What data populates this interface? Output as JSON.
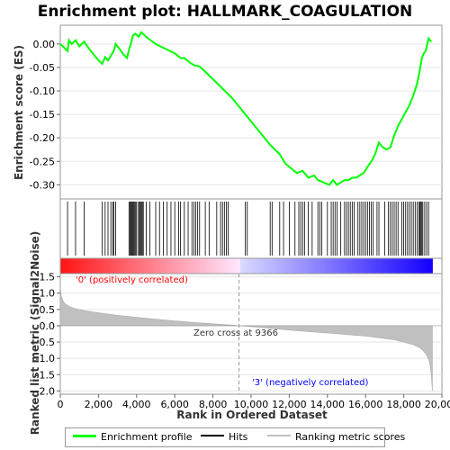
{
  "chart_data": [
    {
      "type": "line",
      "title": "Enrichment plot: HALLMARK_COAGULATION",
      "xlabel": "",
      "ylabel": "Enrichment score (ES)",
      "xlim": [
        0,
        20000
      ],
      "ylim": [
        -0.33,
        0.04
      ],
      "y_ticks": [
        0.0,
        -0.05,
        -0.1,
        -0.15,
        -0.2,
        -0.25,
        -0.3
      ],
      "y_tick_labels": [
        "0.00",
        "-0.05",
        "-0.10",
        "-0.15",
        "-0.20",
        "-0.25",
        "-0.30"
      ],
      "grid": true,
      "series": [
        {
          "name": "Enrichment profile",
          "color": "#00ff00",
          "x": [
            0,
            380,
            450,
            600,
            800,
            1000,
            1250,
            1500,
            2000,
            2200,
            2350,
            2500,
            2650,
            2800,
            2900,
            3100,
            3300,
            3500,
            3600,
            3700,
            3800,
            3950,
            4100,
            4250,
            4500,
            5000,
            5500,
            6000,
            6300,
            6500,
            6800,
            7000,
            7300,
            7500,
            8000,
            8500,
            9000,
            9500,
            10000,
            10500,
            11000,
            11500,
            11800,
            12100,
            12400,
            12700,
            13000,
            13300,
            13500,
            13800,
            14100,
            14300,
            14500,
            14700,
            14900,
            15100,
            15300,
            15500,
            15700,
            15900,
            16100,
            16300,
            16500,
            16700,
            16900,
            17100,
            17300,
            17500,
            17700,
            17900,
            18100,
            18300,
            18500,
            18700,
            18850,
            18950,
            19050,
            19150,
            19300,
            19450
          ],
          "y": [
            0.0,
            -0.015,
            0.008,
            0.0,
            0.008,
            -0.005,
            0.005,
            -0.01,
            -0.035,
            -0.042,
            -0.028,
            -0.035,
            -0.025,
            -0.015,
            0.0,
            -0.01,
            -0.022,
            -0.03,
            -0.012,
            0.0,
            0.018,
            0.022,
            0.015,
            0.025,
            0.015,
            0.0,
            -0.01,
            -0.02,
            -0.03,
            -0.03,
            -0.04,
            -0.045,
            -0.048,
            -0.055,
            -0.075,
            -0.095,
            -0.115,
            -0.14,
            -0.165,
            -0.19,
            -0.215,
            -0.235,
            -0.255,
            -0.265,
            -0.275,
            -0.27,
            -0.285,
            -0.28,
            -0.29,
            -0.295,
            -0.3,
            -0.29,
            -0.3,
            -0.295,
            -0.29,
            -0.29,
            -0.285,
            -0.285,
            -0.28,
            -0.275,
            -0.262,
            -0.25,
            -0.235,
            -0.21,
            -0.22,
            -0.225,
            -0.22,
            -0.195,
            -0.175,
            -0.16,
            -0.145,
            -0.13,
            -0.11,
            -0.085,
            -0.055,
            -0.03,
            -0.02,
            -0.015,
            0.012,
            0.005
          ]
        }
      ]
    },
    {
      "type": "scatter",
      "title": "",
      "xlabel": "",
      "ylabel": "",
      "series": [
        {
          "name": "Hits",
          "color": "#000000",
          "x": [
            380,
            800,
            1250,
            2200,
            2350,
            2500,
            2650,
            2750,
            2800,
            2900,
            3600,
            3650,
            3700,
            3750,
            3800,
            3850,
            3900,
            3950,
            4000,
            4100,
            4150,
            4200,
            4250,
            4300,
            4350,
            4500,
            4700,
            5000,
            5200,
            5400,
            5600,
            5800,
            6000,
            6200,
            6300,
            6500,
            6700,
            6900,
            7000,
            7100,
            7200,
            7300,
            7600,
            7800,
            8200,
            8400,
            8500,
            8600,
            8700,
            8800,
            9700,
            9800,
            11000,
            11100,
            11500,
            11700,
            12000,
            12300,
            12500,
            12600,
            12700,
            12800,
            13000,
            13200,
            13500,
            13600,
            13700,
            14000,
            14200,
            14300,
            14400,
            14500,
            14700,
            14900,
            15000,
            15100,
            15200,
            15300,
            15400,
            15600,
            15700,
            15800,
            15900,
            16000,
            16100,
            16200,
            16300,
            16400,
            16600,
            16700,
            17000,
            17200,
            17300,
            17400,
            17500,
            17600,
            17700,
            17900,
            18000,
            18100,
            18200,
            18300,
            18400,
            18500,
            18600,
            18700,
            18800,
            18850,
            18900,
            18950,
            19000,
            19100,
            19200,
            19300
          ]
        }
      ]
    },
    {
      "type": "area",
      "title": "",
      "xlabel": "Rank in Ordered Dataset",
      "ylabel": "Ranked list metric (Signal2Noise)",
      "xlim": [
        0,
        20000
      ],
      "ylim": [
        -2.1,
        1.6
      ],
      "x_ticks": [
        0,
        2000,
        4000,
        6000,
        8000,
        10000,
        12000,
        14000,
        16000,
        18000,
        20000
      ],
      "x_tick_labels": [
        "0",
        "2,000",
        "4,000",
        "6,000",
        "8,000",
        "10,000",
        "12,000",
        "14,000",
        "16,000",
        "18,000",
        "20,000"
      ],
      "y_ticks": [
        1.5,
        1.0,
        0.5,
        0.0,
        -0.5,
        -1.0,
        -1.5,
        -2.0
      ],
      "y_tick_labels": [
        "1.5",
        "1.0",
        "0.5",
        "0.0",
        "-0.5",
        "-1.0",
        "-1.5",
        "-2.0"
      ],
      "grid": true,
      "series": [
        {
          "name": "Ranking metric scores",
          "color": "#c0c0c0",
          "x": [
            0,
            50,
            150,
            300,
            500,
            800,
            1200,
            2000,
            3000,
            4000,
            5000,
            6000,
            7000,
            8000,
            9000,
            9366,
            10000,
            11000,
            12000,
            13000,
            14000,
            15000,
            16000,
            17000,
            17500,
            18000,
            18500,
            18800,
            19000,
            19200,
            19350,
            19450,
            19500
          ],
          "y": [
            1.2,
            0.9,
            0.75,
            0.65,
            0.58,
            0.52,
            0.47,
            0.4,
            0.32,
            0.26,
            0.2,
            0.15,
            0.1,
            0.06,
            0.02,
            0.0,
            -0.03,
            -0.08,
            -0.13,
            -0.18,
            -0.22,
            -0.27,
            -0.32,
            -0.39,
            -0.43,
            -0.5,
            -0.58,
            -0.66,
            -0.75,
            -0.9,
            -1.1,
            -1.5,
            -2.0
          ]
        }
      ],
      "annotations": {
        "positive_label": "'0' (positively correlated)",
        "negative_label": "'3' (negatively correlated)",
        "zero_cross_label": "Zero cross at 9366",
        "zero_cross_x": 9366
      }
    }
  ],
  "colors": {
    "profile": "#00ff00",
    "hits": "#000000",
    "metric": "#c0c0c0",
    "positive": "#ff0000",
    "negative": "#0000ff",
    "zero_cross_line": "#999999"
  },
  "legend": {
    "items": [
      "Enrichment profile",
      "Hits",
      "Ranking metric scores"
    ],
    "placement": "bottom"
  }
}
